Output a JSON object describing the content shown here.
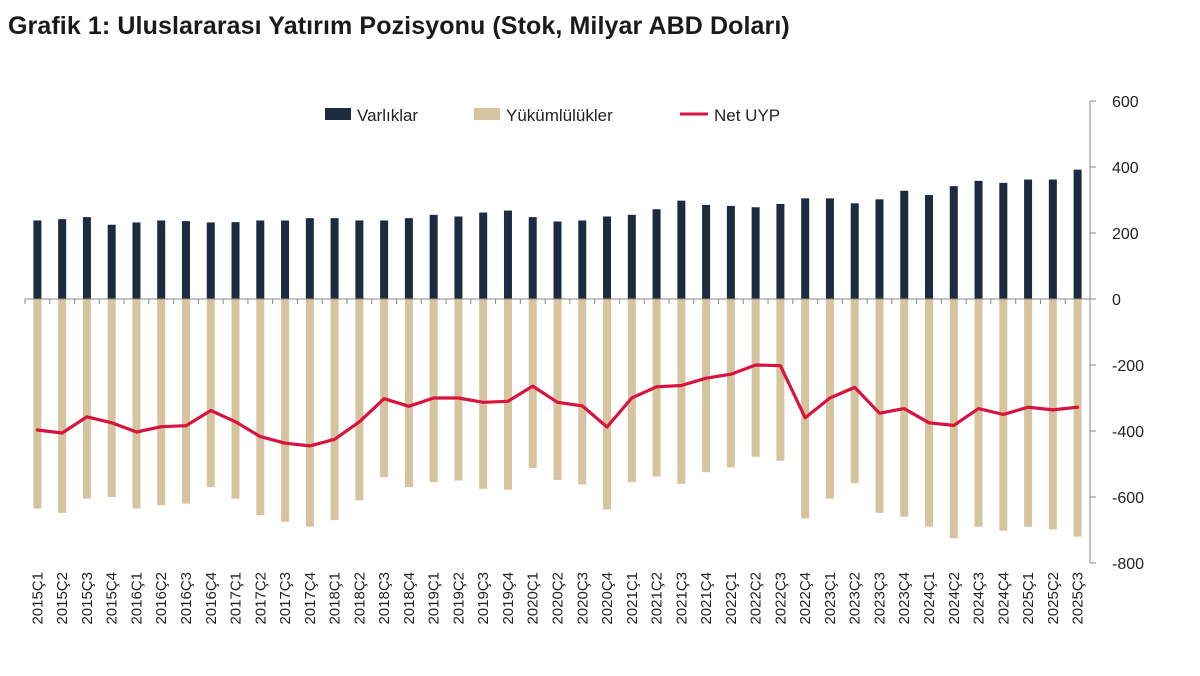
{
  "title": "Grafik 1: Uluslararası Yatırım Pozisyonu (Stok, Milyar ABD Doları)",
  "colors": {
    "assets": "#1c2b3f",
    "liabilities": "#d6c3a0",
    "net": "#d6143c",
    "axis": "#888888"
  },
  "chart_data": {
    "type": "bar",
    "title": "Grafik 1: Uluslararası Yatırım Pozisyonu (Stok, Milyar ABD Doları)",
    "xlabel": "",
    "ylabel": "",
    "ylim": [
      -800,
      600
    ],
    "yticks": [
      600,
      400,
      200,
      0,
      -200,
      -400,
      -600,
      -800
    ],
    "legend_position": "top",
    "categories": [
      "2015Ç1",
      "2015Ç2",
      "2015Ç3",
      "2015Ç4",
      "2016Ç1",
      "2016Ç2",
      "2016Ç3",
      "2016Ç4",
      "2017Ç1",
      "2017Ç2",
      "2017Ç3",
      "2017Ç4",
      "2018Ç1",
      "2018Ç2",
      "2018Ç3",
      "2018Ç4",
      "2019Ç1",
      "2019Ç2",
      "2019Ç3",
      "2019Ç4",
      "2020Ç1",
      "2020Ç2",
      "2020Ç3",
      "2020Ç4",
      "2021Ç1",
      "2021Ç2",
      "2021Ç3",
      "2021Ç4",
      "2022Ç1",
      "2022Ç2",
      "2022Ç3",
      "2022Ç4",
      "2023Ç1",
      "2023Ç2",
      "2023Ç3",
      "2023Ç4",
      "2024Ç1",
      "2024Ç2",
      "2024Ç3",
      "2024Ç4",
      "2025Ç1",
      "2025Ç2",
      "2025Ç3"
    ],
    "series": [
      {
        "name": "Varlıklar",
        "kind": "bar",
        "values": [
          238,
          242,
          248,
          225,
          232,
          238,
          236,
          232,
          233,
          238,
          238,
          245,
          245,
          238,
          238,
          245,
          255,
          250,
          262,
          268,
          248,
          235,
          238,
          250,
          255,
          272,
          298,
          285,
          282,
          278,
          288,
          305,
          305,
          290,
          302,
          328,
          315,
          342,
          358,
          352,
          362,
          362,
          392
        ]
      },
      {
        "name": "Yükümlülükler",
        "kind": "bar",
        "values": [
          -635,
          -648,
          -605,
          -600,
          -635,
          -625,
          -620,
          -570,
          -605,
          -655,
          -675,
          -690,
          -670,
          -610,
          -540,
          -570,
          -555,
          -550,
          -575,
          -578,
          -512,
          -548,
          -562,
          -638,
          -555,
          -538,
          -560,
          -525,
          -510,
          -478,
          -490,
          -665,
          -605,
          -558,
          -648,
          -660,
          -690,
          -725,
          -690,
          -702,
          -690,
          -698,
          -720
        ]
      },
      {
        "name": "Net UYP",
        "kind": "line",
        "values": [
          -397,
          -406,
          -357,
          -375,
          -403,
          -387,
          -384,
          -338,
          -372,
          -417,
          -437,
          -445,
          -425,
          -372,
          -302,
          -325,
          -300,
          -300,
          -313,
          -310,
          -264,
          -313,
          -324,
          -388,
          -300,
          -266,
          -262,
          -240,
          -228,
          -200,
          -202,
          -360,
          -300,
          -268,
          -346,
          -332,
          -375,
          -383,
          -332,
          -350,
          -328,
          -336,
          -328
        ]
      }
    ]
  }
}
